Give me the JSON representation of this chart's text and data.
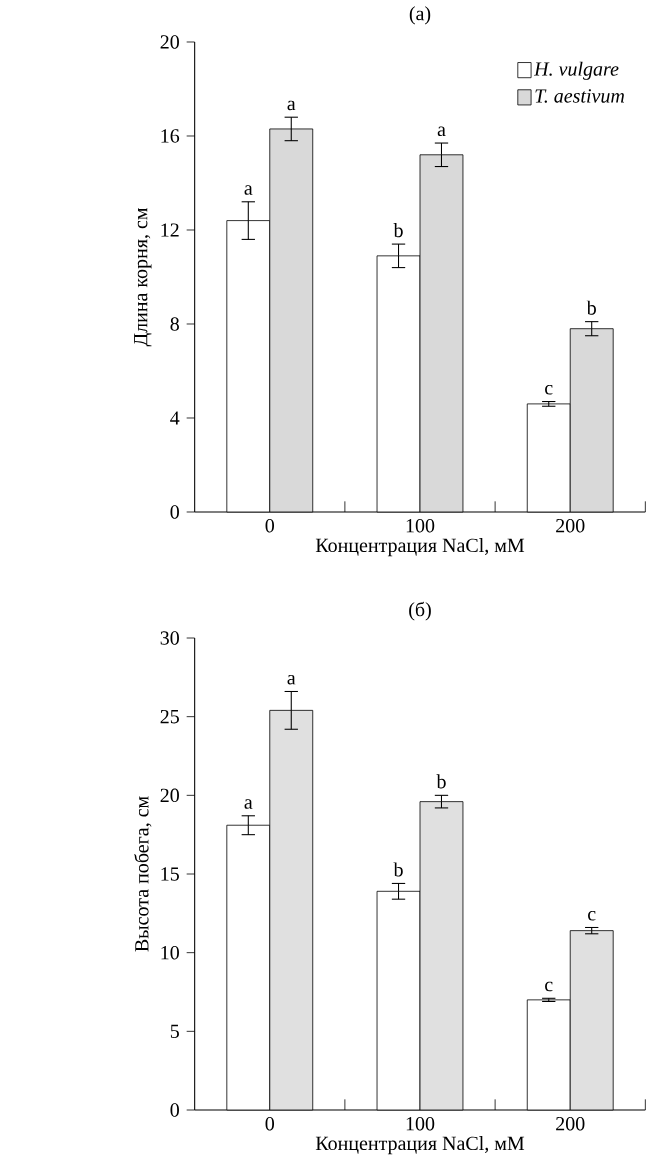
{
  "chart_data": [
    {
      "type": "bar",
      "title": "(а)",
      "xlabel": "Концентрация NaCl, мМ",
      "ylabel": "Длина корня, см",
      "categories": [
        "0",
        "100",
        "200"
      ],
      "series": [
        {
          "name": "*H. vulgare*",
          "color": "#ffffff",
          "values": [
            12.4,
            10.9,
            4.6
          ],
          "errors": [
            0.8,
            0.5,
            0.1
          ]
        },
        {
          "name": "*T. aestivum*",
          "color": "#d9d9d9",
          "values": [
            16.3,
            15.2,
            7.8
          ],
          "errors": [
            0.5,
            0.5,
            0.3
          ]
        }
      ],
      "ylim": [
        0,
        20
      ],
      "yticks": [
        0,
        4,
        8,
        12,
        16,
        20
      ],
      "legend": "top right",
      "annotations": [
        {
          "text": "a",
          "x": "0",
          "y": 12.4
        },
        {
          "text": "a",
          "x": "0",
          "y": 16.3
        },
        {
          "text": "b",
          "x": "100",
          "y": 10.9
        },
        {
          "text": "a",
          "x": "100",
          "y": 15.2
        },
        {
          "text": "c",
          "x": "200",
          "y": 4.6
        },
        {
          "text": "b",
          "x": "200",
          "y": 7.8
        }
      ]
    },
    {
      "type": "bar",
      "title": "(б)",
      "xlabel": "Концентрация NaCl, мМ",
      "ylabel": "Высота побега, см",
      "categories": [
        "0",
        "100",
        "200"
      ],
      "series": [
        {
          "color": "#ffffff",
          "values": [
            18.1,
            13.9,
            7.0
          ],
          "errors": [
            0.6,
            0.5,
            0.1
          ]
        },
        {
          "color": "#e0e0e0",
          "values": [
            25.4,
            19.6,
            11.4
          ],
          "errors": [
            1.2,
            0.4,
            0.2
          ]
        }
      ],
      "ylim": [
        0,
        30
      ],
      "yticks": [
        0,
        5,
        10,
        15,
        20,
        25,
        30
      ],
      "annotations": [
        {
          "text": "a",
          "x": "0",
          "y": 18.1
        },
        {
          "text": "a",
          "x": "0",
          "y": 25.4
        },
        {
          "text": "b",
          "x": "100",
          "y": 13.9
        },
        {
          "text": "b",
          "x": "100",
          "y": 19.6
        },
        {
          "text": "c",
          "x": "200",
          "y": 7.0
        },
        {
          "text": "c",
          "x": "200",
          "y": 11.4
        }
      ]
    }
  ]
}
